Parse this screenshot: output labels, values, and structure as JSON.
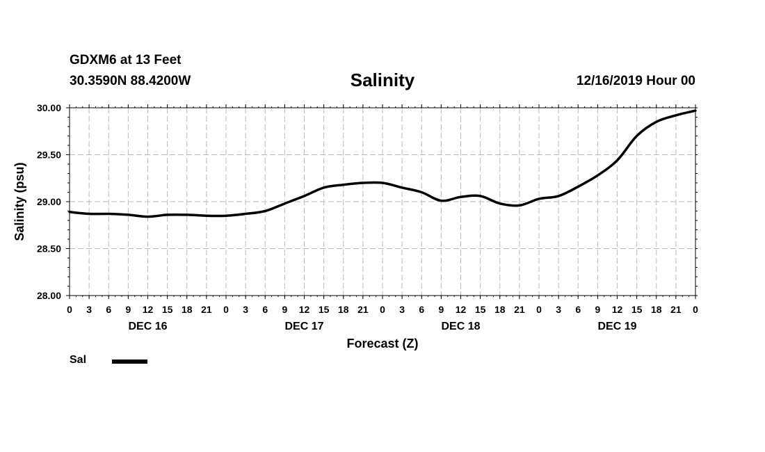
{
  "header": {
    "station": "GDXM6 at 13 Feet",
    "coordinates": "30.3590N 88.4200W",
    "title": "Salinity",
    "timestamp": "12/16/2019 Hour 00"
  },
  "legend": {
    "label": "Sal"
  },
  "chart_data": {
    "type": "line",
    "title": "Salinity",
    "xlabel": "Forecast (Z)",
    "ylabel": "Salinity (psu)",
    "ylim": [
      28.0,
      30.0
    ],
    "xlim": [
      0,
      96
    ],
    "grid": true,
    "y_ticks": [
      "28.00",
      "28.50",
      "29.00",
      "29.50",
      "30.00"
    ],
    "x_ticks": [
      "0",
      "3",
      "6",
      "9",
      "12",
      "15",
      "18",
      "21",
      "0",
      "3",
      "6",
      "9",
      "12",
      "15",
      "18",
      "21",
      "0",
      "3",
      "6",
      "9",
      "12",
      "15",
      "18",
      "21",
      "0",
      "3",
      "6",
      "9",
      "12",
      "15",
      "18",
      "21",
      "0"
    ],
    "day_labels": [
      {
        "label": "DEC 16",
        "hour": 12
      },
      {
        "label": "DEC 17",
        "hour": 36
      },
      {
        "label": "DEC 18",
        "hour": 60
      },
      {
        "label": "DEC 19",
        "hour": 84
      }
    ],
    "legend": "bottom-left",
    "series": [
      {
        "name": "Sal",
        "x": [
          0,
          3,
          6,
          9,
          12,
          15,
          18,
          21,
          24,
          27,
          30,
          33,
          36,
          39,
          42,
          45,
          48,
          51,
          54,
          57,
          60,
          63,
          66,
          69,
          72,
          75,
          78,
          81,
          84,
          87,
          90,
          93,
          96
        ],
        "y": [
          28.89,
          28.87,
          28.87,
          28.86,
          28.84,
          28.86,
          28.86,
          28.85,
          28.85,
          28.87,
          28.9,
          28.98,
          29.06,
          29.15,
          29.18,
          29.2,
          29.2,
          29.15,
          29.1,
          29.01,
          29.05,
          29.06,
          28.98,
          28.96,
          29.03,
          29.06,
          29.16,
          29.28,
          29.44,
          29.7,
          29.85,
          29.92,
          29.97
        ]
      }
    ]
  }
}
